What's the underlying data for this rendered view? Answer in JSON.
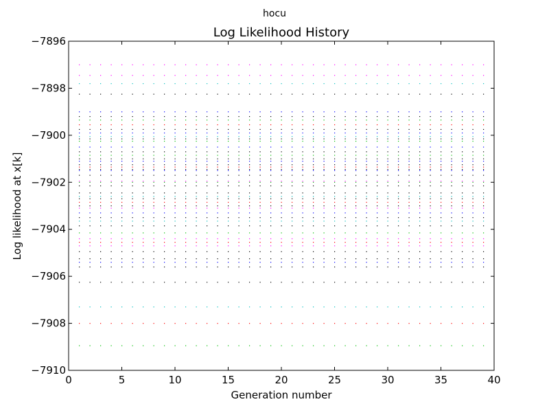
{
  "figure": {
    "suptitle": "hocu"
  },
  "chart_data": {
    "type": "scatter",
    "title": "Log Likelihood History",
    "xlabel": "Generation number",
    "ylabel": "Log likelihood at x[k]",
    "xlim": [
      0,
      40
    ],
    "ylim": [
      -7910,
      -7896
    ],
    "xticks": [
      0,
      5,
      10,
      15,
      20,
      25,
      30,
      35,
      40
    ],
    "yticks": [
      -7910,
      -7908,
      -7906,
      -7904,
      -7902,
      -7900,
      -7898,
      -7896
    ],
    "xtick_labels": [
      "0",
      "5",
      "10",
      "15",
      "20",
      "25",
      "30",
      "35",
      "40"
    ],
    "ytick_labels": [
      "−7910",
      "−7908",
      "−7906",
      "−7904",
      "−7902",
      "−7900",
      "−7898",
      "−7896"
    ],
    "grid": false,
    "legend": "none",
    "marker": "point",
    "generations": [
      1,
      39
    ],
    "series": [
      {
        "color": "#ff00ff",
        "y_values": [
          -7897.0,
          -7897.45,
          -7901.95,
          -7903.1,
          -7904.4,
          -7904.7
        ]
      },
      {
        "color": "#00bfbf",
        "y_values": [
          -7897.8,
          -7900.05,
          -7902.6,
          -7903.65,
          -7907.3
        ]
      },
      {
        "color": "#0000ff",
        "y_values": [
          -7899.0,
          -7899.9,
          -7900.5,
          -7901.1,
          -7901.5,
          -7903.3,
          -7905.4
        ]
      },
      {
        "color": "#00bf00",
        "y_values": [
          -7899.35,
          -7900.25,
          -7900.85,
          -7902.0,
          -7904.15,
          -7908.95
        ]
      },
      {
        "color": "#ff0000",
        "y_values": [
          -7899.55,
          -7901.35,
          -7902.85,
          -7904.55,
          -7908.0
        ]
      },
      {
        "color": "#000000",
        "y_values": [
          -7898.25,
          -7899.2,
          -7899.75,
          -7900.15,
          -7900.7,
          -7901.0,
          -7901.25,
          -7901.45,
          -7901.7,
          -7902.15,
          -7902.45,
          -7902.7,
          -7903.0,
          -7903.5,
          -7903.85,
          -7904.95,
          -7905.25,
          -7905.6,
          -7906.25
        ]
      }
    ]
  }
}
